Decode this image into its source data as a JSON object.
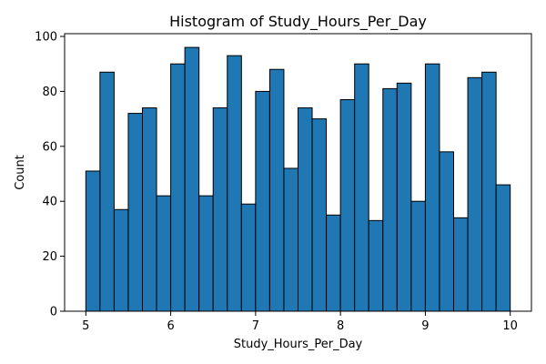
{
  "chart_data": {
    "type": "bar",
    "title": "Histogram of Study_Hours_Per_Day",
    "xlabel": "Study_Hours_Per_Day",
    "ylabel": "Count",
    "xlim": [
      4.75,
      10.25
    ],
    "ylim": [
      0,
      101
    ],
    "bin_start": 5,
    "bin_end": 10,
    "values": [
      51,
      87,
      37,
      72,
      74,
      42,
      90,
      96,
      42,
      74,
      93,
      39,
      80,
      88,
      52,
      74,
      70,
      35,
      77,
      90,
      33,
      81,
      83,
      40,
      90,
      58,
      34,
      85,
      87,
      46
    ],
    "xticks": [
      5,
      6,
      7,
      8,
      9,
      10
    ],
    "yticks": [
      0,
      20,
      40,
      60,
      80,
      100
    ],
    "bar_color": "#1f77b4",
    "edge_color": "#000000",
    "grid": false,
    "legend": "none"
  }
}
